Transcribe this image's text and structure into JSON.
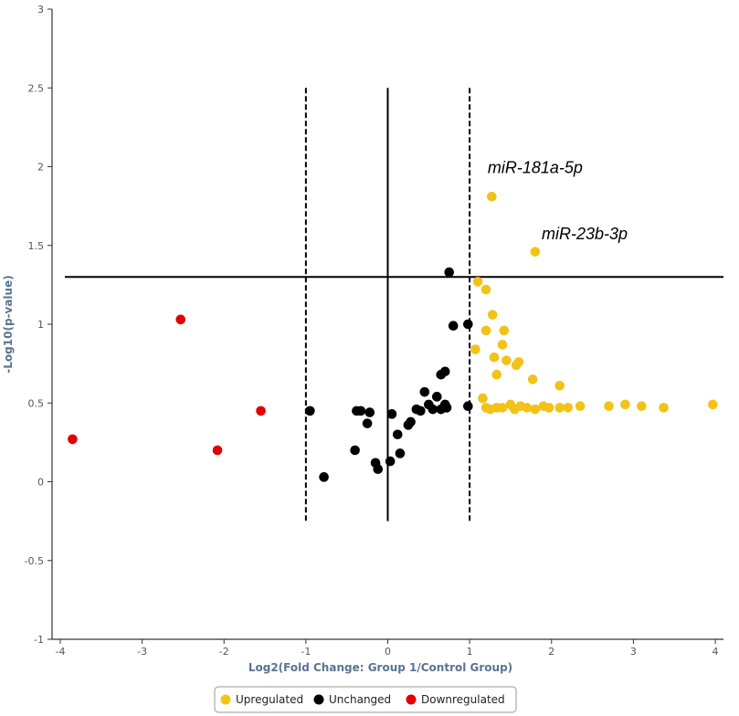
{
  "chart_data": {
    "type": "scatter",
    "title": "",
    "xlabel": "Log2(Fold Change: Group 1/Control Group)",
    "ylabel": "-Log10(p-value)",
    "xlim": [
      -4.1,
      4.1
    ],
    "ylim": [
      -1,
      3
    ],
    "xticks": [
      -4,
      -3,
      -2,
      -1,
      0,
      1,
      2,
      3,
      4
    ],
    "yticks": [
      -1,
      -0.5,
      0,
      0.5,
      1,
      1.5,
      2,
      2.5,
      3
    ],
    "xtick_labels": [
      "-4",
      "-3",
      "-2",
      "-1",
      "0",
      "1",
      "2",
      "3",
      "4"
    ],
    "ytick_labels": [
      "-1",
      "-0.5",
      "0",
      "0.5",
      "1",
      "1.5",
      "2",
      "2.5",
      "3"
    ],
    "grid": false,
    "legend_position": "bottom",
    "reference_lines": {
      "vertical_dashed": [
        -1,
        1
      ],
      "vertical_solid": [
        0
      ],
      "vertical_range": [
        -0.25,
        2.5
      ],
      "horizontal_solid": [
        1.3
      ],
      "horizontal_range": [
        -4.1,
        4.1
      ]
    },
    "colors": {
      "Upregulated": "#f2c218",
      "Unchanged": "#000000",
      "Downregulated": "#e00000",
      "axis_label": "#5a7394"
    },
    "annotations": [
      {
        "text": "miR-181a-5p",
        "x": 1.22,
        "y": 1.96
      },
      {
        "text": "miR-23b-3p",
        "x": 1.88,
        "y": 1.54
      }
    ],
    "series": [
      {
        "name": "Upregulated",
        "points": [
          [
            1.27,
            1.81
          ],
          [
            1.8,
            1.46
          ],
          [
            1.1,
            1.27
          ],
          [
            1.2,
            1.22
          ],
          [
            1.28,
            1.06
          ],
          [
            1.2,
            0.96
          ],
          [
            1.42,
            0.96
          ],
          [
            1.4,
            0.87
          ],
          [
            1.07,
            0.84
          ],
          [
            1.3,
            0.79
          ],
          [
            1.45,
            0.77
          ],
          [
            1.6,
            0.76
          ],
          [
            1.57,
            0.74
          ],
          [
            1.33,
            0.68
          ],
          [
            1.77,
            0.65
          ],
          [
            2.1,
            0.61
          ],
          [
            1.16,
            0.53
          ],
          [
            1.2,
            0.47
          ],
          [
            1.25,
            0.46
          ],
          [
            1.33,
            0.47
          ],
          [
            1.4,
            0.47
          ],
          [
            1.5,
            0.49
          ],
          [
            1.62,
            0.48
          ],
          [
            1.7,
            0.47
          ],
          [
            1.8,
            0.46
          ],
          [
            1.9,
            0.48
          ],
          [
            1.97,
            0.47
          ],
          [
            2.1,
            0.47
          ],
          [
            2.2,
            0.47
          ],
          [
            2.35,
            0.48
          ],
          [
            2.7,
            0.48
          ],
          [
            2.9,
            0.49
          ],
          [
            3.1,
            0.48
          ],
          [
            3.37,
            0.47
          ],
          [
            3.97,
            0.49
          ],
          [
            1.55,
            0.46
          ]
        ]
      },
      {
        "name": "Unchanged",
        "points": [
          [
            0.75,
            1.33
          ],
          [
            0.98,
            1.0
          ],
          [
            0.8,
            0.99
          ],
          [
            0.7,
            0.7
          ],
          [
            0.65,
            0.68
          ],
          [
            0.45,
            0.57
          ],
          [
            0.6,
            0.54
          ],
          [
            0.5,
            0.49
          ],
          [
            0.7,
            0.49
          ],
          [
            0.35,
            0.46
          ],
          [
            0.4,
            0.45
          ],
          [
            0.55,
            0.46
          ],
          [
            0.65,
            0.46
          ],
          [
            0.72,
            0.47
          ],
          [
            0.05,
            0.43
          ],
          [
            0.28,
            0.38
          ],
          [
            0.25,
            0.36
          ],
          [
            0.12,
            0.3
          ],
          [
            0.15,
            0.18
          ],
          [
            -0.95,
            0.45
          ],
          [
            -0.38,
            0.45
          ],
          [
            -0.33,
            0.45
          ],
          [
            -0.22,
            0.44
          ],
          [
            -0.25,
            0.37
          ],
          [
            -0.4,
            0.2
          ],
          [
            -0.15,
            0.12
          ],
          [
            -0.12,
            0.08
          ],
          [
            0.03,
            0.13
          ],
          [
            -0.78,
            0.03
          ],
          [
            0.98,
            0.48
          ]
        ]
      },
      {
        "name": "Downregulated",
        "points": [
          [
            -2.53,
            1.03
          ],
          [
            -1.55,
            0.45
          ],
          [
            -3.85,
            0.27
          ],
          [
            -2.08,
            0.2
          ]
        ]
      }
    ]
  }
}
